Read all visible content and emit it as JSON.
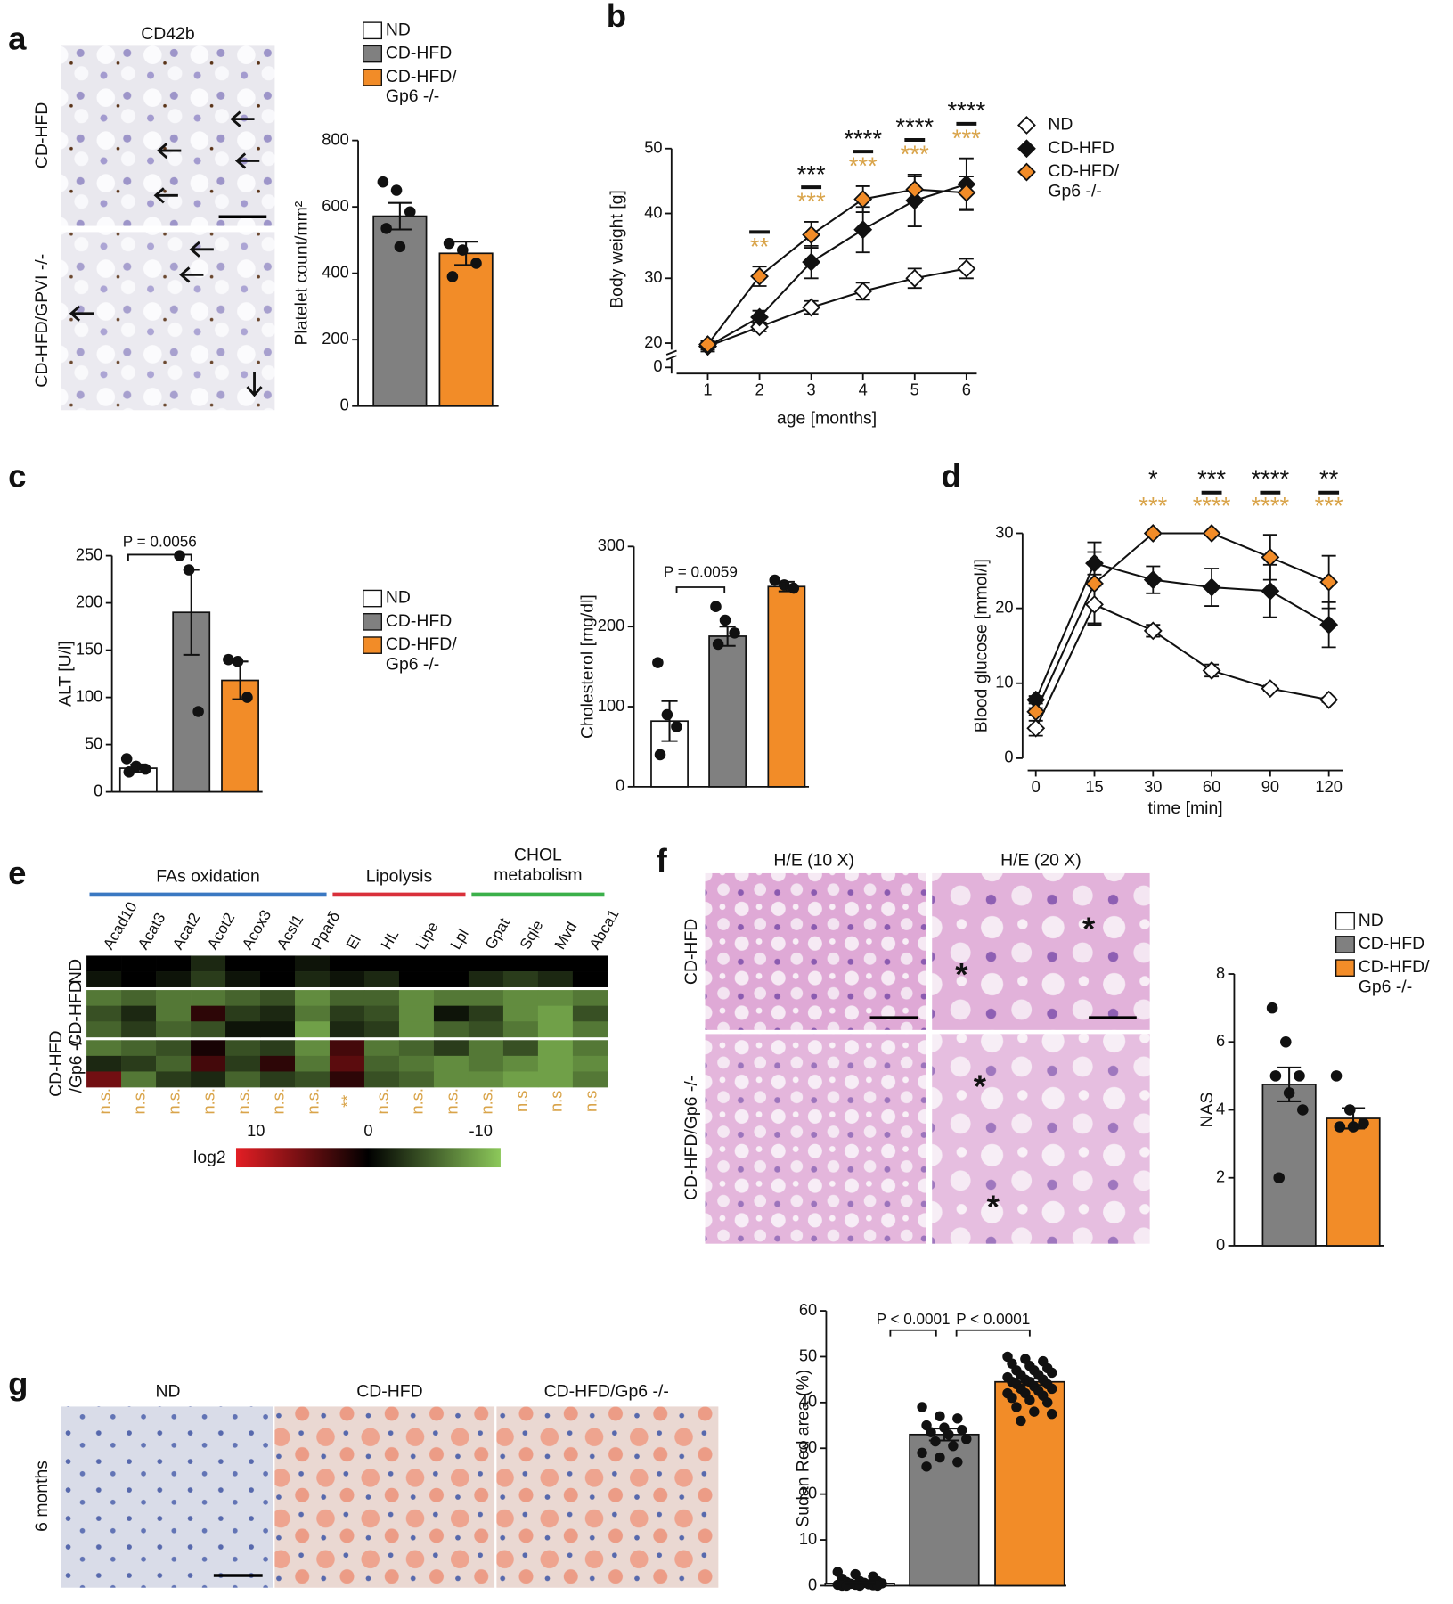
{
  "panels": [
    "a",
    "b",
    "c",
    "d",
    "e",
    "f",
    "g"
  ],
  "images": {
    "a": {
      "title": "CD42b",
      "rows": [
        "CD-HFD",
        "CD-HFD/GPVI -/-"
      ]
    },
    "f": {
      "titles": [
        "H/E (10 X)",
        "H/E (20 X)"
      ],
      "rows": [
        "CD-HFD",
        "CD-HFD/Gp6 -/-"
      ],
      "markers": [
        "*",
        "*",
        "*",
        "*"
      ]
    },
    "g": {
      "titles": [
        "ND",
        "CD-HFD",
        "CD-HFD/Gp6 -/-"
      ],
      "rows": [
        "6 months"
      ]
    }
  },
  "chart_data": [
    {
      "type": "bar",
      "ylabel": "Platelet count/mm²",
      "ylim": [
        0,
        800
      ],
      "yticks": [
        0,
        200,
        400,
        600,
        800
      ],
      "series": [
        {
          "name": "ND",
          "color": "#ffffff",
          "values": [
            null
          ]
        },
        {
          "name": "CD-HFD",
          "color": "#808080",
          "values": [
            572
          ],
          "errors": [
            40
          ],
          "points": [
            [
              675,
              650,
              585,
              535,
              480
            ]
          ]
        },
        {
          "name": "CD-HFD/\nGp6 -/-",
          "color": "#f28c28",
          "values": [
            460
          ],
          "errors": [
            35
          ],
          "points": [
            [
              490,
              470,
              430,
              390
            ]
          ]
        }
      ]
    },
    {
      "type": "line",
      "xlabel": "age [months]",
      "ylabel": "Body weight [g]",
      "x": [
        1,
        2,
        3,
        4,
        5,
        6
      ],
      "xlim": [
        0.3,
        6.2
      ],
      "xticks": [
        1,
        2,
        3,
        4,
        5,
        6
      ],
      "ylim": [
        19,
        50
      ],
      "yticks": [
        20,
        30,
        40,
        50
      ],
      "y_break_label": "0",
      "series": [
        {
          "name": "ND",
          "color": "#ffffff",
          "values": [
            19.5,
            22.5,
            25.5,
            28,
            30,
            31.5
          ],
          "errors": [
            0.5,
            0.7,
            1,
            1.3,
            1.5,
            1.5
          ]
        },
        {
          "name": "CD-HFD",
          "color": "#111111",
          "values": [
            19.5,
            24,
            32.5,
            37.5,
            42,
            44.5
          ],
          "errors": [
            0.8,
            1,
            2.5,
            3.5,
            4,
            4
          ]
        },
        {
          "name": "CD-HFD/\nGp6 -/-",
          "color": "#f28c28",
          "values": [
            19.8,
            30.3,
            36.7,
            42.2,
            43.7,
            43.2
          ],
          "errors": [
            0.5,
            1.5,
            2,
            2,
            2,
            2.5
          ]
        }
      ],
      "significance": {
        "black": [
          null,
          null,
          "***",
          "****",
          "****",
          "****"
        ],
        "orange": [
          null,
          "**",
          "***",
          "***",
          "***",
          "***"
        ],
        "bars": [
          false,
          true,
          true,
          true,
          true,
          true
        ]
      }
    },
    {
      "type": "bar",
      "ylabel": "ALT [U/l]",
      "ylim": [
        0,
        250
      ],
      "yticks": [
        0,
        50,
        100,
        150,
        200,
        250
      ],
      "annotations": [
        "P = 0.0056"
      ],
      "series": [
        {
          "name": "ND",
          "color": "#ffffff",
          "values": [
            25
          ],
          "errors": [
            4
          ],
          "points": [
            [
              35,
              27,
              24,
              21
            ]
          ]
        },
        {
          "name": "CD-HFD",
          "color": "#808080",
          "values": [
            190
          ],
          "errors": [
            45
          ],
          "points": [
            [
              250,
              235,
              85
            ]
          ]
        },
        {
          "name": "CD-HFD/\nGp6 -/-",
          "color": "#f28c28",
          "values": [
            118
          ],
          "errors": [
            20
          ],
          "points": [
            [
              140,
              138,
              100
            ]
          ]
        }
      ]
    },
    {
      "type": "bar",
      "ylabel": "Cholesterol [mg/dl]",
      "ylim": [
        0,
        300
      ],
      "yticks": [
        0,
        100,
        200,
        300
      ],
      "annotations": [
        "P = 0.0059"
      ],
      "series": [
        {
          "color": "#ffffff",
          "values": [
            82
          ],
          "errors": [
            25
          ],
          "points": [
            [
              155,
              90,
              75,
              40
            ]
          ]
        },
        {
          "color": "#808080",
          "values": [
            188
          ],
          "errors": [
            12
          ],
          "points": [
            [
              225,
              208,
              192,
              178
            ]
          ]
        },
        {
          "color": "#f28c28",
          "values": [
            250
          ],
          "errors": [
            6
          ],
          "points": [
            [
              258,
              252,
              248
            ]
          ]
        }
      ]
    },
    {
      "type": "line",
      "xlabel": "time [min]",
      "ylabel": "Blood glucose [mmol/l]",
      "categories": [
        "0",
        "15",
        "30",
        "60",
        "90",
        "120"
      ],
      "ylim": [
        0,
        30
      ],
      "yticks": [
        0,
        10,
        20,
        30
      ],
      "series": [
        {
          "color": "#ffffff",
          "values": [
            4,
            20.5,
            17,
            11.7,
            9.3,
            7.8
          ],
          "errors": [
            1,
            2.5,
            0.8,
            0.8,
            0.4,
            0.3
          ]
        },
        {
          "color": "#111111",
          "values": [
            7.8,
            26,
            23.8,
            22.8,
            22.3,
            17.8
          ],
          "errors": [
            0.5,
            1.5,
            1.8,
            2.5,
            3.5,
            3
          ]
        },
        {
          "color": "#f28c28",
          "values": [
            6.2,
            23.3,
            30,
            30,
            26.8,
            23.5
          ],
          "errors": [
            0.5,
            5.5,
            0,
            0,
            3,
            3.5
          ]
        }
      ],
      "significance": {
        "black": [
          null,
          null,
          "*",
          "***",
          "****",
          "**"
        ],
        "orange": [
          null,
          null,
          "***",
          "****",
          "****",
          "***"
        ],
        "bars": [
          false,
          false,
          false,
          true,
          true,
          true
        ]
      }
    },
    {
      "type": "heatmap",
      "column_groups": [
        {
          "label": "FAs oxidation",
          "color": "#3a78c2",
          "columns": [
            "Acad10",
            "Acat3",
            "Acat2",
            "Acot2",
            "Acox3",
            "Acsl1",
            "Pparδ"
          ]
        },
        {
          "label": "Lipolysis",
          "color": "#d9303a",
          "columns": [
            "El",
            "HL",
            "Lipe",
            "Lpl"
          ]
        },
        {
          "label": "CHOL\nmetabolism",
          "color": "#3bb04a",
          "columns": [
            "Gpat",
            "Sqle",
            "Mvd",
            "Abca1"
          ]
        }
      ],
      "row_groups": [
        {
          "label": "ND",
          "values": [
            [
              0,
              0,
              0,
              -2,
              0,
              0,
              -1,
              0,
              0,
              0,
              0,
              0,
              0,
              0,
              0
            ],
            [
              -1,
              0,
              -1,
              -3,
              -1,
              0,
              -2,
              -1,
              -2,
              0,
              0,
              -2,
              -3,
              -2,
              0
            ]
          ]
        },
        {
          "label": "CD-HFD",
          "values": [
            [
              -6,
              -5,
              -6,
              -6,
              -5,
              -4,
              -7,
              -5,
              -5,
              -7,
              -6,
              -6,
              -7,
              -7,
              -6
            ],
            [
              -4,
              -2,
              -6,
              2,
              -3,
              -2,
              -6,
              -3,
              -4,
              -7,
              -1,
              -3,
              -7,
              -8,
              -4
            ],
            [
              -5,
              -3,
              -5,
              -4,
              -1,
              -1,
              -8,
              -2,
              -3,
              -7,
              -5,
              -4,
              -6,
              -8,
              -6
            ]
          ]
        },
        {
          "label": "CD-HFD\n/Gp6 -/-",
          "values": [
            [
              -6,
              -5,
              -4,
              1,
              -4,
              -3,
              -7,
              3,
              -6,
              -5,
              -3,
              -6,
              -4,
              -8,
              -6
            ],
            [
              -2,
              -3,
              -5,
              3,
              -3,
              2,
              -6,
              4,
              -5,
              -6,
              -7,
              -6,
              -7,
              -8,
              -7
            ],
            [
              5,
              -6,
              -3,
              -2,
              -5,
              -3,
              -4,
              2,
              -4,
              -5,
              -7,
              -7,
              -8,
              -8,
              -6
            ]
          ]
        }
      ],
      "significance": [
        "n.s.",
        "n.s.",
        "n.s.",
        "n.s.",
        "n.s.",
        "n.s.",
        "n.s.",
        "**",
        "n.s.",
        "n.s.",
        "n.s.",
        "n.s.",
        "n.s",
        "n.s",
        "n.s"
      ],
      "clim": [
        -10,
        10
      ],
      "cticks": [
        10,
        0,
        -10
      ],
      "colorbar_label": "log2",
      "colors": [
        "#8cc85a",
        "#000000",
        "#e31e24"
      ]
    },
    {
      "type": "bar",
      "ylabel": "NAS",
      "ylim": [
        0,
        8
      ],
      "yticks": [
        0,
        2,
        4,
        6,
        8
      ],
      "series": [
        {
          "name": "ND",
          "color": "#ffffff",
          "values": [
            null
          ]
        },
        {
          "name": "CD-HFD",
          "color": "#808080",
          "values": [
            4.75
          ],
          "errors": [
            0.5
          ],
          "points": [
            [
              7,
              6,
              5,
              5,
              4.5,
              4,
              2
            ]
          ]
        },
        {
          "name": "CD-HFD/\nGp6 -/-",
          "color": "#f28c28",
          "values": [
            3.75
          ],
          "errors": [
            0.3
          ],
          "points": [
            [
              5,
              4,
              3.6,
              3.5,
              3.5
            ]
          ]
        }
      ]
    },
    {
      "type": "bar",
      "ylabel": "Sudan Red area (%)",
      "ylim": [
        0,
        60
      ],
      "yticks": [
        0,
        10,
        20,
        30,
        40,
        50,
        60
      ],
      "annotations": [
        "P < 0.0001",
        "P < 0.0001"
      ],
      "series": [
        {
          "color": "#ffffff",
          "values": [
            0.5
          ],
          "errors": [
            0.2
          ],
          "points": [
            [
              3,
              2.5,
              2,
              1.5,
              1,
              1,
              0.8,
              0.6,
              0.5,
              0.4,
              0.3,
              0.2,
              0.2,
              0.1,
              0,
              0,
              0,
              0
            ]
          ]
        },
        {
          "color": "#808080",
          "values": [
            33
          ],
          "errors": [
            1.3
          ],
          "points": [
            [
              39,
              37,
              36.5,
              35,
              34.5,
              34,
              33.5,
              33,
              32,
              31.5,
              30.5,
              29,
              28,
              27,
              26
            ]
          ]
        },
        {
          "color": "#f28c28",
          "values": [
            44.5
          ],
          "errors": [
            0.7
          ],
          "points": [
            [
              50,
              49.5,
              49,
              48.5,
              48,
              47.5,
              47,
              47,
              46.5,
              46,
              46,
              45.5,
              45,
              45,
              44.5,
              44.5,
              44,
              44,
              43.5,
              43,
              43,
              42.5,
              42,
              42,
              41.5,
              41,
              40.5,
              40,
              39,
              38,
              37.5,
              36
            ]
          ]
        }
      ]
    }
  ]
}
